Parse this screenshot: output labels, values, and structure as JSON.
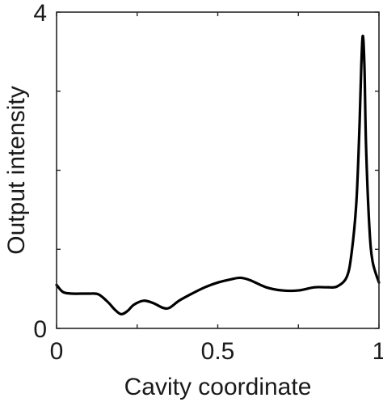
{
  "chart_data": {
    "type": "line",
    "title": "",
    "xlabel": "Cavity coordinate",
    "ylabel": "Output intensity",
    "xlim": [
      0,
      1
    ],
    "ylim": [
      0,
      4
    ],
    "xticks": [
      0,
      0.25,
      0.5,
      0.75,
      1
    ],
    "yticks": [
      0,
      1,
      2,
      3,
      4
    ],
    "xtick_labels": [
      "0",
      "",
      "0.5",
      "",
      "1"
    ],
    "ytick_labels": [
      "0",
      "",
      "",
      "",
      "4"
    ],
    "grid": false,
    "line_color": "#000000",
    "series": [
      {
        "x": [
          0,
          0.02,
          0.05,
          0.1,
          0.13,
          0.16,
          0.18,
          0.2,
          0.22,
          0.24,
          0.27,
          0.3,
          0.33,
          0.35,
          0.38,
          0.42,
          0.46,
          0.5,
          0.54,
          0.57,
          0.6,
          0.65,
          0.7,
          0.75,
          0.8,
          0.84,
          0.87,
          0.9,
          0.915,
          0.93,
          0.94,
          0.945,
          0.95,
          0.955,
          0.96,
          0.97,
          0.98,
          1
        ],
        "y": [
          0.55,
          0.46,
          0.44,
          0.44,
          0.43,
          0.33,
          0.24,
          0.18,
          0.22,
          0.3,
          0.35,
          0.32,
          0.26,
          0.26,
          0.35,
          0.44,
          0.52,
          0.58,
          0.62,
          0.64,
          0.61,
          0.52,
          0.48,
          0.48,
          0.52,
          0.52,
          0.53,
          0.65,
          0.95,
          1.6,
          2.6,
          3.3,
          3.7,
          3.3,
          2.3,
          1.3,
          0.85,
          0.58
        ]
      }
    ]
  }
}
